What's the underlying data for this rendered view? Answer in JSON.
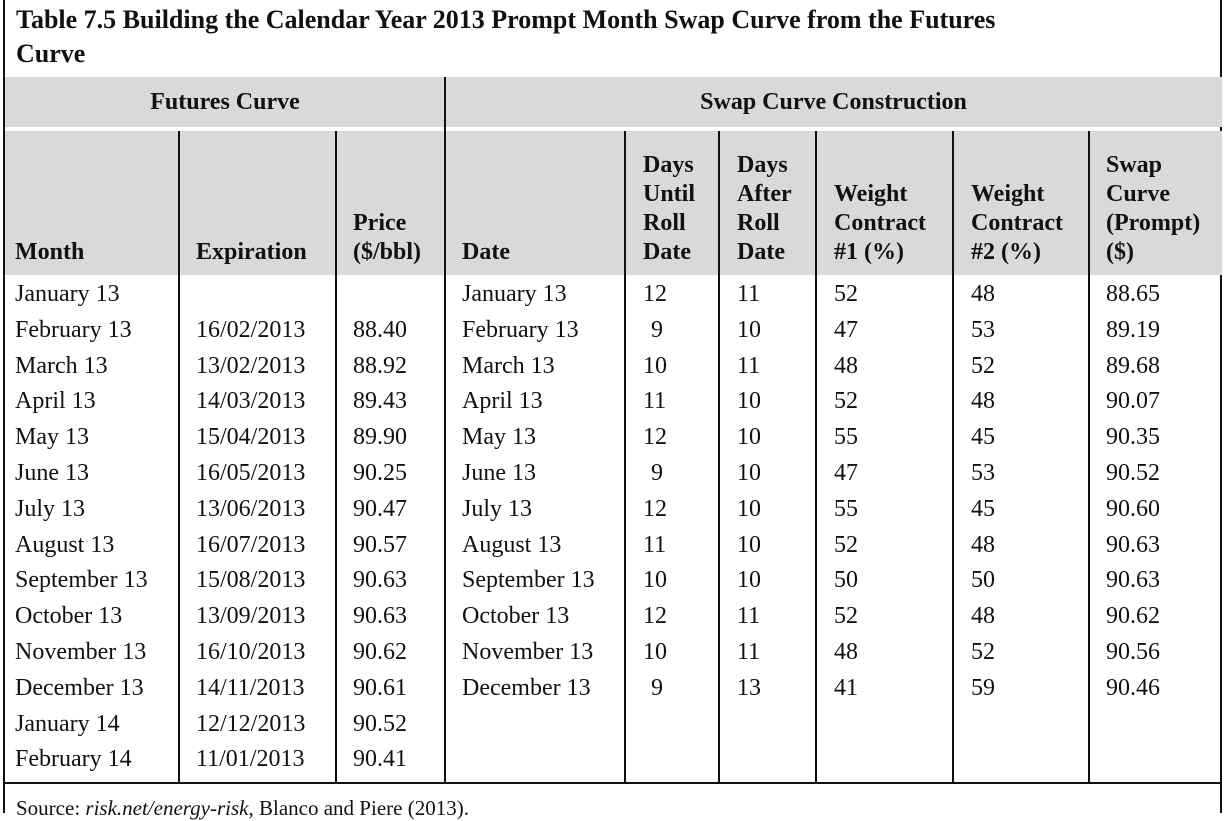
{
  "title_line1": "Table 7.5  Building the Calendar Year 2013 Prompt Month Swap Curve from the Futures",
  "title_line2": "Curve",
  "groups": {
    "futures": "Futures Curve",
    "swap": "Swap Curve Construction"
  },
  "headers": {
    "month": [
      "Month"
    ],
    "expiration": [
      "Expiration"
    ],
    "price": [
      "Price",
      "($/bbl)"
    ],
    "date": [
      "Date"
    ],
    "days_until": [
      "Days",
      "Until",
      "Roll",
      "Date"
    ],
    "days_after": [
      "Days",
      "After",
      "Roll",
      "Date"
    ],
    "weight1": [
      "Weight",
      "Contract",
      "#1 (%)"
    ],
    "weight2": [
      "Weight",
      "Contract",
      "#2 (%)"
    ],
    "swap": [
      "Swap",
      "Curve",
      "(Prompt)",
      "($)"
    ]
  },
  "futures_rows": [
    {
      "month": "January 13",
      "expiration": "",
      "price": ""
    },
    {
      "month": "February 13",
      "expiration": "16/02/2013",
      "price": "88.40"
    },
    {
      "month": "March 13",
      "expiration": "13/02/2013",
      "price": "88.92"
    },
    {
      "month": "April 13",
      "expiration": "14/03/2013",
      "price": "89.43"
    },
    {
      "month": "May 13",
      "expiration": "15/04/2013",
      "price": "89.90"
    },
    {
      "month": "June 13",
      "expiration": "16/05/2013",
      "price": "90.25"
    },
    {
      "month": "July 13",
      "expiration": "13/06/2013",
      "price": "90.47"
    },
    {
      "month": "August 13",
      "expiration": "16/07/2013",
      "price": "90.57"
    },
    {
      "month": "September 13",
      "expiration": "15/08/2013",
      "price": "90.63"
    },
    {
      "month": "October 13",
      "expiration": "13/09/2013",
      "price": "90.63"
    },
    {
      "month": "November 13",
      "expiration": "16/10/2013",
      "price": "90.62"
    },
    {
      "month": "December 13",
      "expiration": "14/11/2013",
      "price": "90.61"
    },
    {
      "month": "January 14",
      "expiration": "12/12/2013",
      "price": "90.52"
    },
    {
      "month": "February 14",
      "expiration": "11/01/2013",
      "price": "90.41"
    }
  ],
  "swap_rows": [
    {
      "date": "January 13",
      "until": "12",
      "after": "11",
      "w1": "52",
      "w2": "48",
      "swap": "88.65"
    },
    {
      "date": "February 13",
      "until": "9",
      "after": "10",
      "w1": "47",
      "w2": "53",
      "swap": "89.19"
    },
    {
      "date": "March 13",
      "until": "10",
      "after": "11",
      "w1": "48",
      "w2": "52",
      "swap": "89.68"
    },
    {
      "date": "April 13",
      "until": "11",
      "after": "10",
      "w1": "52",
      "w2": "48",
      "swap": "90.07"
    },
    {
      "date": "May 13",
      "until": "12",
      "after": "10",
      "w1": "55",
      "w2": "45",
      "swap": "90.35"
    },
    {
      "date": "June 13",
      "until": "9",
      "after": "10",
      "w1": "47",
      "w2": "53",
      "swap": "90.52"
    },
    {
      "date": "July 13",
      "until": "12",
      "after": "10",
      "w1": "55",
      "w2": "45",
      "swap": "90.60"
    },
    {
      "date": "August 13",
      "until": "11",
      "after": "10",
      "w1": "52",
      "w2": "48",
      "swap": "90.63"
    },
    {
      "date": "September 13",
      "until": "10",
      "after": "10",
      "w1": "50",
      "w2": "50",
      "swap": "90.63"
    },
    {
      "date": "October 13",
      "until": "12",
      "after": "11",
      "w1": "52",
      "w2": "48",
      "swap": "90.62"
    },
    {
      "date": "November 13",
      "until": "10",
      "after": "11",
      "w1": "48",
      "w2": "52",
      "swap": "90.56"
    },
    {
      "date": "December 13",
      "until": "9",
      "after": "13",
      "w1": "41",
      "w2": "59",
      "swap": "90.46"
    }
  ],
  "source": {
    "prefix": "Source: ",
    "italic": "risk.net/energy-risk",
    "suffix": ", Blanco and Piere (2013)."
  }
}
